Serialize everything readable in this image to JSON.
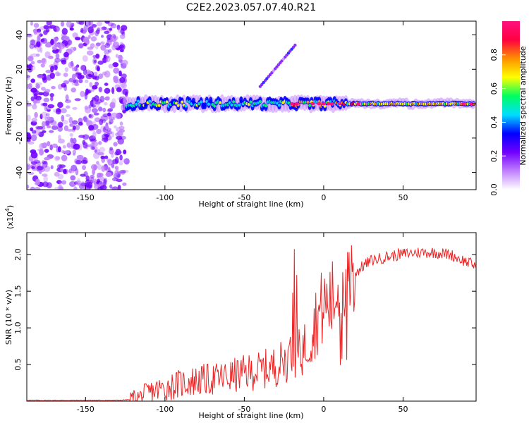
{
  "title": "C2E2.2023.057.07.40.R21",
  "colors": {
    "snr_line": "#ee2222",
    "frame": "#000000"
  },
  "chart_data": [
    {
      "type": "heatmap",
      "name": "spectrogram",
      "xlabel": "Height of straight line (km)",
      "ylabel": "Frequency (Hz)",
      "xlim": [
        -187,
        96
      ],
      "ylim": [
        -50,
        48
      ],
      "xticks": [
        -150,
        -100,
        -50,
        0,
        50
      ],
      "yticks": [
        -40,
        -20,
        0,
        20,
        40
      ],
      "colorbar": {
        "label": "Normalized spectral amplitude",
        "range": [
          0,
          1
        ],
        "ticks": [
          "0.0",
          "0.2",
          "0.4",
          "0.6",
          "0.8"
        ],
        "colormap": [
          "#ffffff",
          "#c080ff",
          "#7000ff",
          "#0000ff",
          "#00ddff",
          "#00ff60",
          "#ffff00",
          "#ff9000",
          "#ff0040",
          "#ff1080"
        ]
      },
      "features": {
        "noise_region_x": [
          -187,
          -124
        ],
        "signal_centre_hz": 0,
        "signal_start_x": -124,
        "side_streak": {
          "x": [
            -40,
            -18
          ],
          "y": [
            10,
            34
          ]
        }
      }
    },
    {
      "type": "line",
      "name": "snr",
      "xlabel": "Height of straight line (km)",
      "ylabel": "SNR (10 * v/v)",
      "multiplier": "(x10",
      "multiplier_exp": "4",
      "multiplier_close": ")",
      "xlim": [
        -187,
        96
      ],
      "ylim": [
        0,
        2.3
      ],
      "xticks": [
        -150,
        -100,
        -50,
        0,
        50
      ],
      "yticks": [
        "0.5",
        "1.0",
        "1.5",
        "2.0"
      ],
      "series": [
        {
          "x": [
            -187,
            -130,
            -122,
            -115,
            -110,
            -100,
            -90,
            -80,
            -70,
            -60,
            -50,
            -40,
            -30,
            -25,
            -20,
            -15,
            -10,
            -5,
            0,
            5,
            10,
            15,
            20,
            25,
            30,
            40,
            50,
            60,
            70,
            80,
            90,
            96
          ],
          "y": [
            0.01,
            0.01,
            0.02,
            0.06,
            0.12,
            0.18,
            0.24,
            0.28,
            0.3,
            0.33,
            0.38,
            0.42,
            0.48,
            0.55,
            0.6,
            0.65,
            0.8,
            1.1,
            1.3,
            1.35,
            1.5,
            1.65,
            1.75,
            1.85,
            1.92,
            1.97,
            2.01,
            2.03,
            2.03,
            2.0,
            1.9,
            1.85
          ]
        }
      ]
    }
  ]
}
